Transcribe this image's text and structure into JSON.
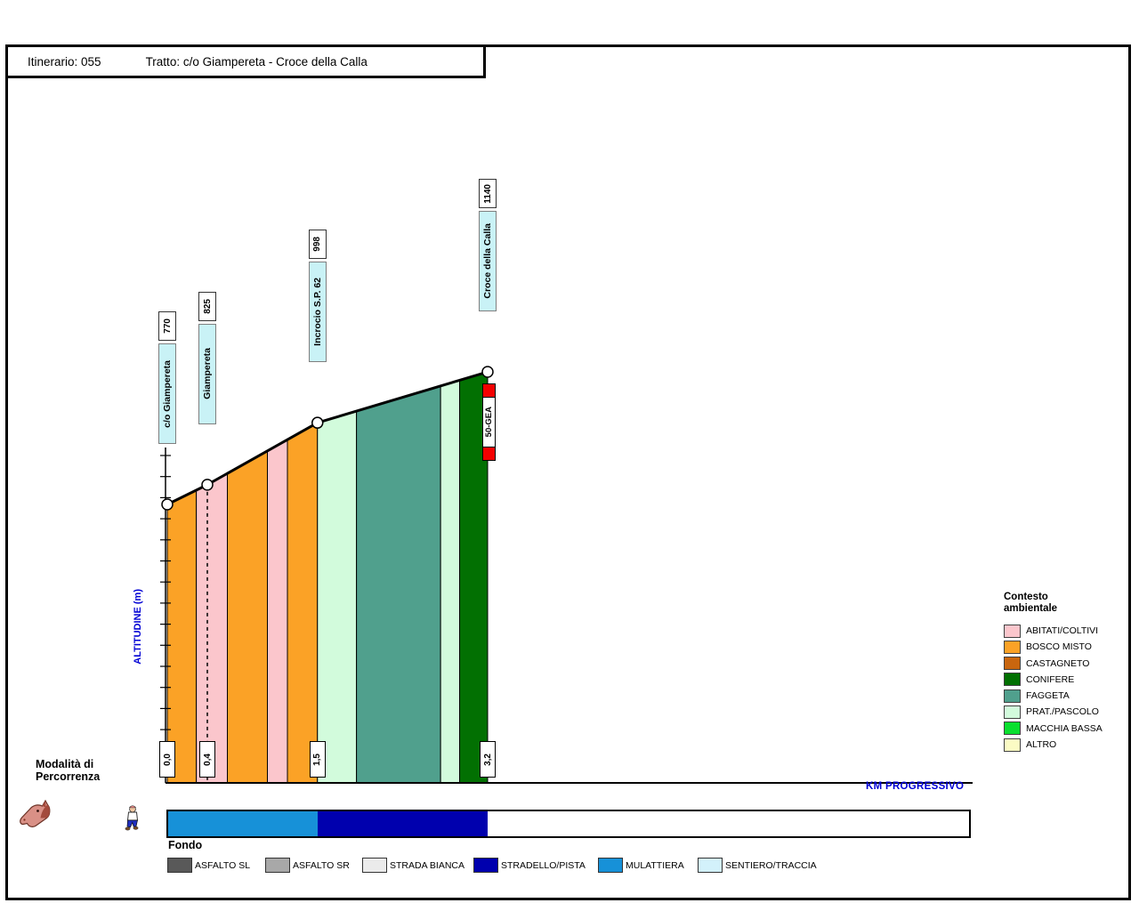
{
  "title": {
    "itinerario": "Itinerario: 055",
    "tratto": "Tratto: c/o Giampereta - Croce della Calla"
  },
  "axes": {
    "y_label": "ALTITUDINE (m)",
    "x_label": "KM PROGRESSIVO"
  },
  "modalita": {
    "title_line1": "Modalità di",
    "title_line2": "Percorrenza",
    "modes": [
      "horse",
      "hiker"
    ]
  },
  "legend_contesto": {
    "title_line1": "Contesto",
    "title_line2": "ambientale",
    "items": [
      {
        "label": "ABITATI/COLTIVI",
        "color": "#fbc6cc"
      },
      {
        "label": "BOSCO MISTO",
        "color": "#fba226"
      },
      {
        "label": "CASTAGNETO",
        "color": "#c9660f"
      },
      {
        "label": "CONIFERE",
        "color": "#027002"
      },
      {
        "label": "FAGGETA",
        "color": "#50a08d"
      },
      {
        "label": "PRAT./PASCOLO",
        "color": "#d2fbdc"
      },
      {
        "label": "MACCHIA BASSA",
        "color": "#0adf2f"
      },
      {
        "label": "ALTRO",
        "color": "#fbfbc4"
      }
    ]
  },
  "legend_fondo": {
    "title": "Fondo",
    "items": [
      {
        "label": "ASFALTO SL",
        "color": "#595959"
      },
      {
        "label": "ASFALTO SR",
        "color": "#a8a8a8"
      },
      {
        "label": "STRADA BIANCA",
        "color": "#ebebeb"
      },
      {
        "label": "STRADELLO/PISTA",
        "color": "#0000ae"
      },
      {
        "label": "MULATTIERA",
        "color": "#1791d8"
      },
      {
        "label": "SENTIERO/TRACCIA",
        "color": "#d3f1fb"
      }
    ]
  },
  "chart_data": {
    "type": "area",
    "title": "Profilo altimetrico del tratto",
    "xlabel": "KM PROGRESSIVO",
    "ylabel": "ALTITUDINE (m)",
    "x_range_km": [
      0.0,
      3.2
    ],
    "elevation_range_m": [
      770,
      1140
    ],
    "waypoints": [
      {
        "name": "c/o Giampereta",
        "km": 0.0,
        "km_label": "0,0",
        "elevation_m": 770,
        "elevation_label": "770",
        "marker": "tick"
      },
      {
        "name": "Giampereta",
        "km": 0.4,
        "km_label": "0,4",
        "elevation_m": 825,
        "elevation_label": "825",
        "marker": "dashed"
      },
      {
        "name": "Incrocio S.P. 62",
        "km": 1.5,
        "km_label": "1,5",
        "elevation_m": 998,
        "elevation_label": "998",
        "marker": "tick"
      },
      {
        "name": "Croce della Calla",
        "km": 3.2,
        "km_label": "3,2",
        "elevation_m": 1140,
        "elevation_label": "1140",
        "marker": "tick"
      }
    ],
    "context_bands": [
      {
        "context": "BOSCO MISTO",
        "km_start": 0.0,
        "km_end": 0.29,
        "color": "#fba226"
      },
      {
        "context": "ABITATI/COLTIVI",
        "km_start": 0.29,
        "km_end": 0.6,
        "color": "#fbc6cc"
      },
      {
        "context": "BOSCO MISTO",
        "km_start": 0.6,
        "km_end": 1.0,
        "color": "#fba226"
      },
      {
        "context": "ABITATI/COLTIVI",
        "km_start": 1.0,
        "km_end": 1.2,
        "color": "#fbc6cc"
      },
      {
        "context": "BOSCO MISTO",
        "km_start": 1.2,
        "km_end": 1.5,
        "color": "#fba226"
      },
      {
        "context": "PRAT./PASCOLO",
        "km_start": 1.5,
        "km_end": 1.89,
        "color": "#d2fbdc"
      },
      {
        "context": "FAGGETA",
        "km_start": 1.89,
        "km_end": 2.73,
        "color": "#50a08d"
      },
      {
        "context": "PRAT./PASCOLO",
        "km_start": 2.73,
        "km_end": 2.92,
        "color": "#d2fbdc"
      },
      {
        "context": "CONIFERE",
        "km_start": 2.92,
        "km_end": 3.2,
        "color": "#027002"
      }
    ],
    "trail_marker": {
      "label": "50-GEA",
      "km": 3.2,
      "flag_color": "#f40000"
    },
    "fondo_bar": [
      {
        "fondo": "MULATTIERA",
        "km_start": 0.0,
        "km_end": 1.5,
        "color": "#1791d8"
      },
      {
        "fondo": "STRADELLO/PISTA",
        "km_start": 1.5,
        "km_end": 3.2,
        "color": "#0000ae"
      }
    ]
  }
}
